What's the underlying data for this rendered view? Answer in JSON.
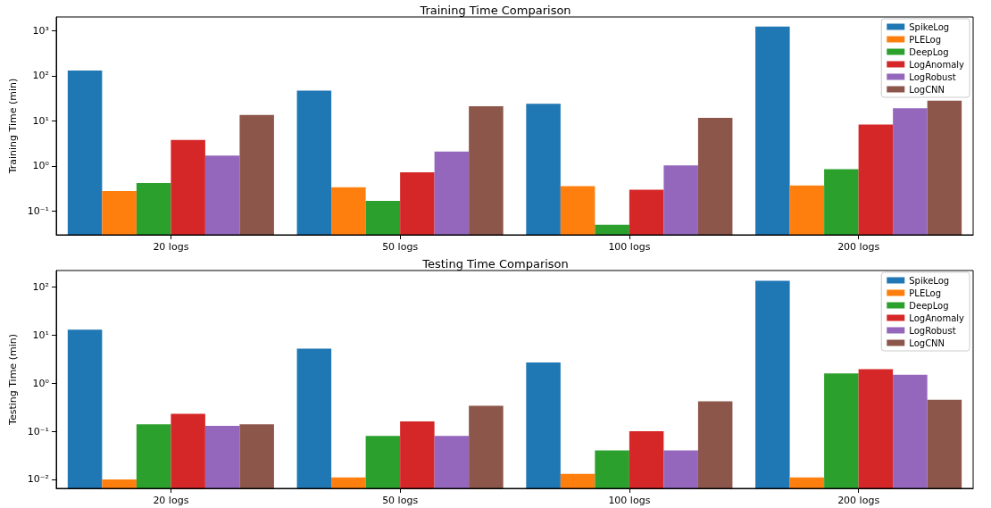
{
  "chart_data": [
    {
      "type": "bar",
      "title": "Training Time Comparison",
      "ylabel": "Training Time (min)",
      "categories": [
        "20 logs",
        "50 logs",
        "100 logs",
        "200 logs"
      ],
      "log": true,
      "ylim": [
        0.03,
        2000
      ],
      "yticks": [
        {
          "value": 0.1,
          "label": "10⁻¹"
        },
        {
          "value": 1,
          "label": "10⁰"
        },
        {
          "value": 10,
          "label": "10¹"
        },
        {
          "value": 100,
          "label": "10²"
        },
        {
          "value": 1000,
          "label": "10³"
        }
      ],
      "grid": false,
      "legend": "top right",
      "series": [
        {
          "name": "SpikeLog",
          "color": "#1f77b4",
          "values": [
            130,
            47,
            24,
            1230
          ]
        },
        {
          "name": "PLELog",
          "color": "#ff7f0e",
          "values": [
            0.28,
            0.34,
            0.36,
            0.37
          ]
        },
        {
          "name": "DeepLog",
          "color": "#2ca02c",
          "values": [
            0.42,
            0.17,
            0.05,
            0.85
          ]
        },
        {
          "name": "LogAnomaly",
          "color": "#d62728",
          "values": [
            3.8,
            0.73,
            0.3,
            8.3
          ]
        },
        {
          "name": "LogRobust",
          "color": "#9467bd",
          "values": [
            1.7,
            2.1,
            1.03,
            19
          ]
        },
        {
          "name": "LogCNN",
          "color": "#8c564b",
          "values": [
            13.5,
            21,
            11.7,
            28
          ]
        }
      ]
    },
    {
      "type": "bar",
      "title": "Testing Time Comparison",
      "ylabel": "Testing Time (min)",
      "categories": [
        "20 logs",
        "50 logs",
        "100 logs",
        "200 logs"
      ],
      "log": true,
      "ylim": [
        0.0065,
        220
      ],
      "yticks": [
        {
          "value": 0.01,
          "label": "10⁻²"
        },
        {
          "value": 0.1,
          "label": "10⁻¹"
        },
        {
          "value": 1,
          "label": "10⁰"
        },
        {
          "value": 10,
          "label": "10¹"
        },
        {
          "value": 100,
          "label": "10²"
        }
      ],
      "grid": false,
      "legend": "top right",
      "series": [
        {
          "name": "SpikeLog",
          "color": "#1f77b4",
          "values": [
            13,
            5.2,
            2.7,
            135
          ]
        },
        {
          "name": "PLELog",
          "color": "#ff7f0e",
          "values": [
            0.01,
            0.011,
            0.013,
            0.011
          ]
        },
        {
          "name": "DeepLog",
          "color": "#2ca02c",
          "values": [
            0.14,
            0.08,
            0.04,
            1.6
          ]
        },
        {
          "name": "LogAnomaly",
          "color": "#d62728",
          "values": [
            0.23,
            0.16,
            0.1,
            1.95
          ]
        },
        {
          "name": "LogRobust",
          "color": "#9467bd",
          "values": [
            0.13,
            0.08,
            0.04,
            1.5
          ]
        },
        {
          "name": "LogCNN",
          "color": "#8c564b",
          "values": [
            0.14,
            0.34,
            0.42,
            0.45
          ]
        }
      ]
    }
  ]
}
